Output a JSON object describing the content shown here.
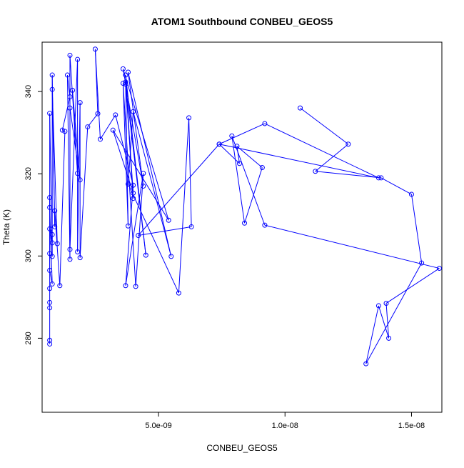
{
  "chart_data": {
    "type": "line",
    "title": "ATOM1 Southbound CONBEU_GEOS5",
    "xlabel": "CONBEU_GEOS5",
    "ylabel": "Theta (K)",
    "xlim": [
      4e-10,
      1.62e-08
    ],
    "ylim": [
      262,
      352
    ],
    "x_ticks": [
      5e-09,
      1e-08,
      1.5e-08
    ],
    "x_tick_labels": [
      "5.0e-09",
      "1.0e-08",
      "1.5e-08"
    ],
    "y_ticks": [
      280,
      300,
      320,
      340
    ],
    "y_tick_labels": [
      "280",
      "300",
      "320",
      "340"
    ],
    "grid": false,
    "legend": "none",
    "series_color": "#0000ff",
    "marker": "open-circle",
    "series": [
      {
        "values": [
          [
            1.06e-08,
            336.0
          ],
          [
            1.25e-08,
            327.2
          ],
          [
            1.12e-08,
            320.6
          ],
          [
            1.38e-08,
            319.0
          ],
          [
            1.5e-08,
            315.0
          ],
          [
            1.54e-08,
            298.3
          ],
          [
            1.32e-08,
            273.8
          ],
          [
            1.37e-08,
            287.9
          ],
          [
            1.41e-08,
            280.0
          ],
          [
            1.4e-08,
            288.5
          ],
          [
            1.61e-08,
            297.0
          ],
          [
            9.2e-09,
            307.5
          ],
          [
            7.9e-09,
            329.2
          ],
          [
            8.4e-09,
            308.0
          ],
          [
            9.1e-09,
            321.5
          ],
          [
            8.1e-09,
            326.7
          ],
          [
            8.2e-09,
            322.5
          ],
          [
            7.4e-09,
            327.2
          ],
          [
            9.2e-09,
            332.2
          ],
          [
            1.37e-08,
            319.0
          ],
          [
            7.4e-09,
            327.2
          ],
          [
            4.2e-09,
            305.0
          ],
          [
            6.3e-09,
            307.1
          ],
          [
            6.2e-09,
            333.6
          ],
          [
            5.8e-09,
            291.0
          ],
          [
            3.8e-09,
            317.5
          ],
          [
            4e-09,
            335.1
          ],
          [
            5.5e-09,
            299.9
          ],
          [
            3.8e-09,
            344.7
          ],
          [
            4.4e-09,
            317.0
          ],
          [
            3.6e-09,
            345.5
          ],
          [
            5.4e-09,
            308.7
          ],
          [
            3.2e-09,
            330.6
          ],
          [
            4e-09,
            315.3
          ],
          [
            3.7e-09,
            342.3
          ],
          [
            4e-09,
            314.0
          ],
          [
            3.7e-09,
            344.0
          ],
          [
            4.5e-09,
            300.2
          ],
          [
            3.7e-09,
            341.8
          ],
          [
            3.8e-09,
            307.3
          ],
          [
            3.6e-09,
            342.0
          ],
          [
            4.1e-09,
            292.6
          ],
          [
            4.4e-09,
            320.1
          ],
          [
            3.7e-09,
            292.8
          ],
          [
            4e-09,
            317.2
          ],
          [
            3.3e-09,
            334.3
          ],
          [
            2.7e-09,
            328.4
          ],
          [
            2.5e-09,
            350.3
          ],
          [
            2.6e-09,
            334.6
          ],
          [
            2.2e-09,
            331.4
          ],
          [
            1.9e-09,
            299.6
          ],
          [
            1.9e-09,
            337.3
          ],
          [
            1.8e-09,
            301.0
          ],
          [
            1.8e-09,
            347.8
          ],
          [
            1.5e-09,
            301.6
          ],
          [
            1.5e-09,
            348.8
          ],
          [
            1.8e-09,
            320.1
          ],
          [
            1.6e-09,
            340.3
          ],
          [
            1.9e-09,
            318.5
          ],
          [
            1.5e-09,
            336.0
          ],
          [
            1.5e-09,
            299.2
          ],
          [
            1.4e-09,
            344.0
          ],
          [
            1.5e-09,
            338.7
          ],
          [
            1.2e-09,
            330.6
          ],
          [
            1.3e-09,
            330.3
          ],
          [
            1.1e-09,
            292.8
          ],
          [
            9e-10,
            311.0
          ],
          [
            1e-09,
            303.0
          ],
          [
            8e-10,
            340.5
          ],
          [
            9e-10,
            307.1
          ],
          [
            8e-10,
            344.0
          ],
          [
            8e-10,
            303.2
          ],
          [
            7e-10,
            306.6
          ],
          [
            8e-10,
            305.2
          ],
          [
            8e-10,
            299.9
          ],
          [
            7e-10,
            334.7
          ],
          [
            7e-10,
            296.5
          ],
          [
            8e-10,
            293.2
          ],
          [
            7e-10,
            311.8
          ],
          [
            7e-10,
            314.2
          ],
          [
            7e-10,
            300.6
          ],
          [
            7e-10,
            292.1
          ],
          [
            7e-10,
            288.7
          ],
          [
            7e-10,
            287.4
          ],
          [
            7e-10,
            279.5
          ],
          [
            7e-10,
            278.6
          ]
        ]
      }
    ]
  }
}
